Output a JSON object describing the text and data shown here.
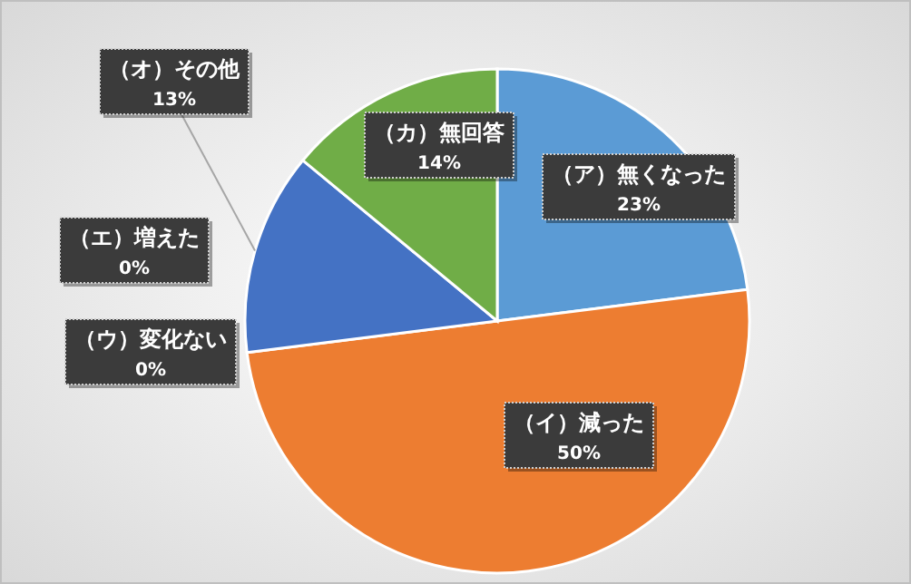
{
  "chart_data": {
    "type": "pie",
    "categories": [
      "（ア）無くなった",
      "（イ）減った",
      "（ウ）変化ない",
      "（エ）増えた",
      "（オ）その他",
      "（カ）無回答"
    ],
    "values": [
      23,
      50,
      0,
      0,
      13,
      14
    ],
    "colors": [
      "#5b9bd5",
      "#ed7d31",
      "#a5a5a5",
      "#ffc000",
      "#4472c4",
      "#70ad47"
    ],
    "value_labels": [
      "23%",
      "50%",
      "0%",
      "0%",
      "13%",
      "14%"
    ]
  }
}
